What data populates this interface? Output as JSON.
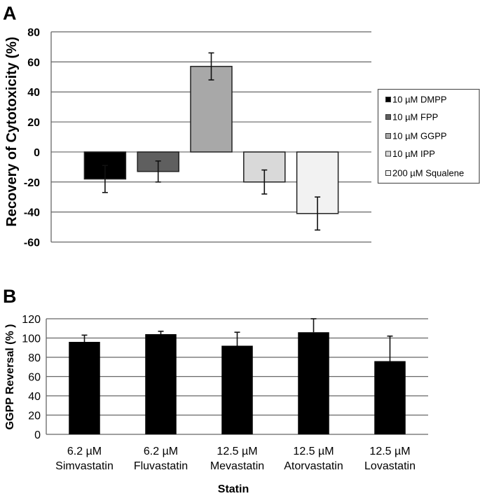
{
  "chart_data": [
    {
      "panel": "A",
      "type": "bar",
      "title": "",
      "xlabel": "",
      "ylabel": "Recovery of Cytotoxicity (%)",
      "ylim": [
        -60,
        80
      ],
      "yticks": [
        80,
        60,
        40,
        20,
        0,
        -20,
        -40,
        -60
      ],
      "grid": true,
      "legend_position": "right",
      "categories": [
        ""
      ],
      "series": [
        {
          "name": "10 µM DMPP",
          "values": [
            -18
          ],
          "error": [
            9
          ],
          "color": "#000000"
        },
        {
          "name": "10 µM FPP",
          "values": [
            -13
          ],
          "error": [
            7
          ],
          "color": "#5f5f5f"
        },
        {
          "name": "10 µM GGPP",
          "values": [
            57
          ],
          "error": [
            9
          ],
          "color": "#a8a8a8"
        },
        {
          "name": "10 µM IPP",
          "values": [
            -20
          ],
          "error": [
            8
          ],
          "color": "#d9d9d9"
        },
        {
          "name": "200 µM Squalene",
          "values": [
            -41
          ],
          "error": [
            11
          ],
          "color": "#f2f2f2"
        }
      ]
    },
    {
      "panel": "B",
      "type": "bar",
      "title": "",
      "xlabel": "Statin",
      "ylabel": "GGPP Reversal (% )",
      "ylim": [
        0,
        120
      ],
      "yticks": [
        120,
        100,
        80,
        60,
        40,
        20,
        0
      ],
      "grid": true,
      "legend_position": "none",
      "categories": [
        [
          "6.2 µM",
          "Simvastatin"
        ],
        [
          "6.2 µM",
          "Fluvastatin"
        ],
        [
          "12.5 µM",
          "Mevastatin"
        ],
        [
          "12.5 µM",
          "Atorvastatin"
        ],
        [
          "12.5 µM",
          "Lovastatin"
        ]
      ],
      "values": [
        96,
        104,
        92,
        106,
        76
      ],
      "error": [
        7,
        3,
        14,
        14,
        26
      ],
      "error_direction": "up",
      "color": "#000000"
    }
  ],
  "labels": {
    "panel_a": "A",
    "panel_b": "B"
  }
}
